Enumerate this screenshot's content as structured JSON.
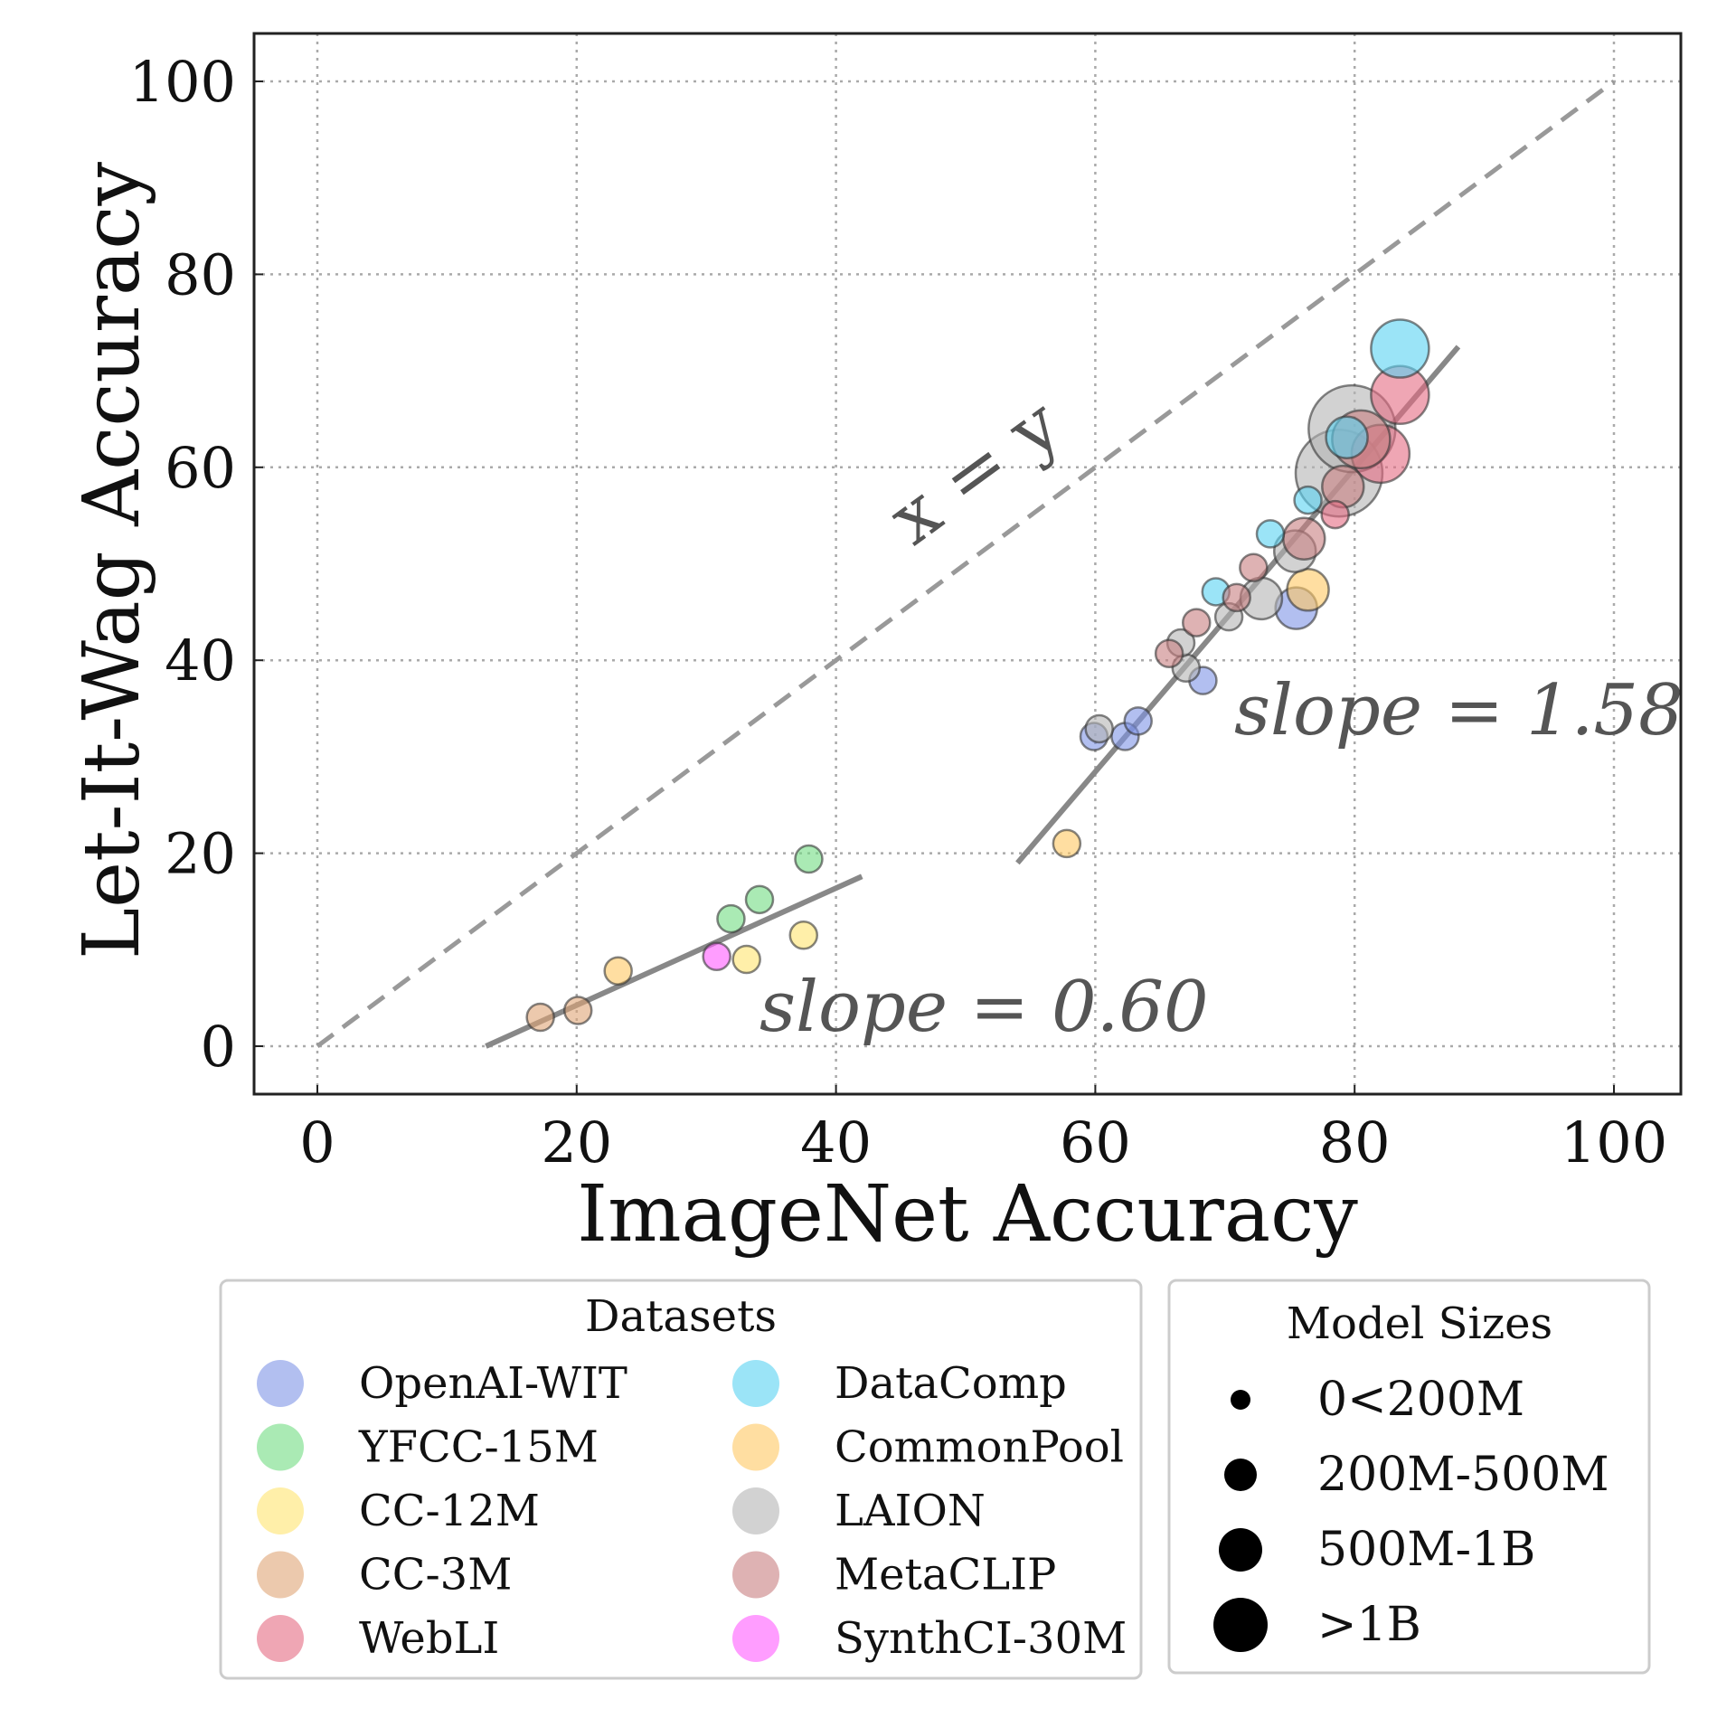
{
  "chart_data": {
    "type": "scatter",
    "xlabel": "ImageNet Accuracy",
    "ylabel": "Let-It-Wag Accuracy",
    "xlim": [
      -5,
      105
    ],
    "ylim": [
      -5,
      105
    ],
    "xticks": [
      0,
      20,
      40,
      60,
      80,
      100
    ],
    "yticks": [
      0,
      20,
      40,
      60,
      80,
      100
    ],
    "grid": true,
    "annotations": {
      "identity": "x = y",
      "slope_high": "slope = 1.58",
      "slope_low": "slope = 0.60"
    },
    "reference_line": {
      "x": [
        0,
        100
      ],
      "y": [
        0,
        100
      ],
      "style": "dashed"
    },
    "fit_lines": [
      {
        "x": [
          13,
          42
        ],
        "y": [
          0,
          17.6
        ]
      },
      {
        "x": [
          54,
          88
        ],
        "y": [
          19,
          72.5
        ]
      }
    ],
    "datasets_legend_title": "Datasets",
    "sizes_legend_title": "Model Sizes",
    "size_classes": [
      "0<200M",
      "200M-500M",
      "500M-1B",
      ">1B"
    ],
    "series": [
      {
        "name": "OpenAI-WIT",
        "color": "#7f95e6",
        "points": [
          [
            59.9,
            32.1,
            0
          ],
          [
            62.3,
            32.1,
            0
          ],
          [
            63.3,
            33.7,
            0
          ],
          [
            68.3,
            37.9,
            0
          ],
          [
            75.5,
            45.4,
            1
          ]
        ]
      },
      {
        "name": "YFCC-15M",
        "color": "#72dc82",
        "points": [
          [
            31.9,
            13.2,
            0
          ],
          [
            34.1,
            15.2,
            0
          ],
          [
            37.9,
            19.4,
            0
          ]
        ]
      },
      {
        "name": "CC-12M",
        "color": "#ffe470",
        "points": [
          [
            33.1,
            9.0,
            0
          ],
          [
            37.5,
            11.5,
            0
          ]
        ]
      },
      {
        "name": "CC-3M",
        "color": "#e0a577",
        "points": [
          [
            17.2,
            3.0,
            0
          ],
          [
            20.1,
            3.7,
            0
          ]
        ]
      },
      {
        "name": "WebLI",
        "color": "#e46a82",
        "points": [
          [
            78.5,
            55.1,
            0
          ],
          [
            82.0,
            61.4,
            2
          ],
          [
            83.5,
            67.5,
            2
          ]
        ]
      },
      {
        "name": "DataComp",
        "color": "#58d2f2",
        "points": [
          [
            69.3,
            47.1,
            0
          ],
          [
            73.5,
            53.1,
            0
          ],
          [
            76.4,
            56.6,
            0
          ],
          [
            79.4,
            63.1,
            1
          ],
          [
            83.5,
            72.3,
            2
          ]
        ]
      },
      {
        "name": "CommonPool",
        "color": "#ffc862",
        "points": [
          [
            23.2,
            7.8,
            0
          ],
          [
            57.8,
            21.0,
            0
          ],
          [
            76.4,
            47.3,
            1
          ]
        ]
      },
      {
        "name": "LAION",
        "color": "#b4b4b4",
        "points": [
          [
            60.3,
            32.9,
            0
          ],
          [
            67.0,
            39.2,
            0
          ],
          [
            66.6,
            41.8,
            0
          ],
          [
            70.3,
            44.5,
            0
          ],
          [
            72.8,
            46.4,
            1
          ],
          [
            75.4,
            51.3,
            1
          ],
          [
            78.8,
            59.4,
            3
          ],
          [
            79.8,
            64.0,
            3
          ]
        ]
      },
      {
        "name": "MetaCLIP",
        "color": "#c87f80",
        "points": [
          [
            65.7,
            40.7,
            0
          ],
          [
            67.8,
            43.9,
            0
          ],
          [
            70.9,
            46.5,
            0
          ],
          [
            72.2,
            49.6,
            0
          ],
          [
            76.1,
            52.6,
            1
          ],
          [
            79.1,
            58.0,
            1
          ],
          [
            80.5,
            62.9,
            2
          ]
        ]
      },
      {
        "name": "SynthCI-30M",
        "color": "#ff5cff",
        "points": [
          [
            30.8,
            9.3,
            0
          ]
        ]
      }
    ]
  }
}
